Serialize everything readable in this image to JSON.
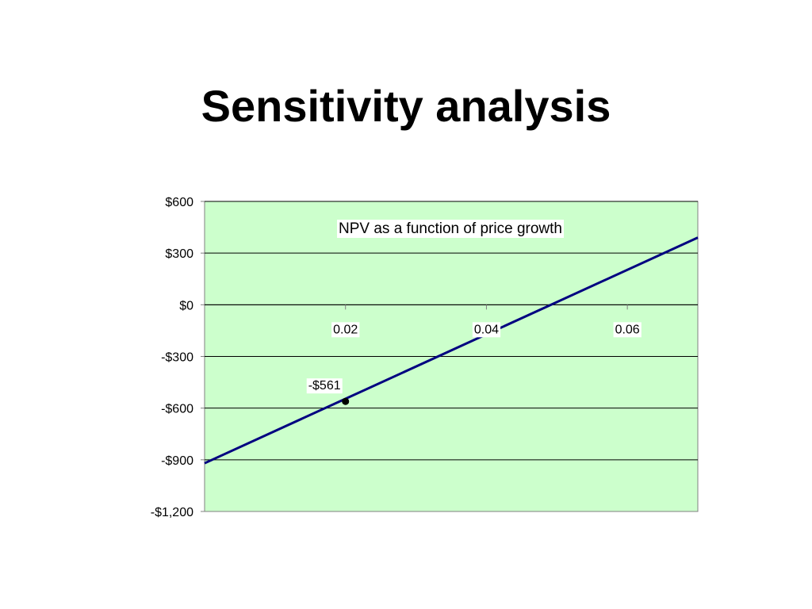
{
  "slide": {
    "title": "Sensitivity analysis"
  },
  "colors": {
    "plot_background": "#ccffcc",
    "gridline": "#000000",
    "series_line": "#000080",
    "axis": "#808080",
    "label_box": "#ffffff"
  },
  "chart_data": {
    "type": "line",
    "title": "NPV as a function of price growth",
    "xlabel": "",
    "ylabel": "",
    "xlim": [
      0,
      0.07
    ],
    "ylim": [
      -1200,
      600
    ],
    "x_ticks": [
      {
        "value": 0.02,
        "label": "0.02"
      },
      {
        "value": 0.04,
        "label": "0.04"
      },
      {
        "value": 0.06,
        "label": "0.06"
      }
    ],
    "y_ticks": [
      {
        "value": 600,
        "label": "$600"
      },
      {
        "value": 300,
        "label": "$300"
      },
      {
        "value": 0,
        "label": "$0"
      },
      {
        "value": -300,
        "label": "-$300"
      },
      {
        "value": -600,
        "label": "-$600"
      },
      {
        "value": -900,
        "label": "-$900"
      },
      {
        "value": -1200,
        "label": "-$1,200"
      }
    ],
    "grid": true,
    "series": [
      {
        "x": [
          0,
          0.07
        ],
        "y": [
          -920,
          390
        ]
      }
    ],
    "annotations": [
      {
        "x": 0.02,
        "y": -561,
        "label": "-$561"
      }
    ]
  }
}
